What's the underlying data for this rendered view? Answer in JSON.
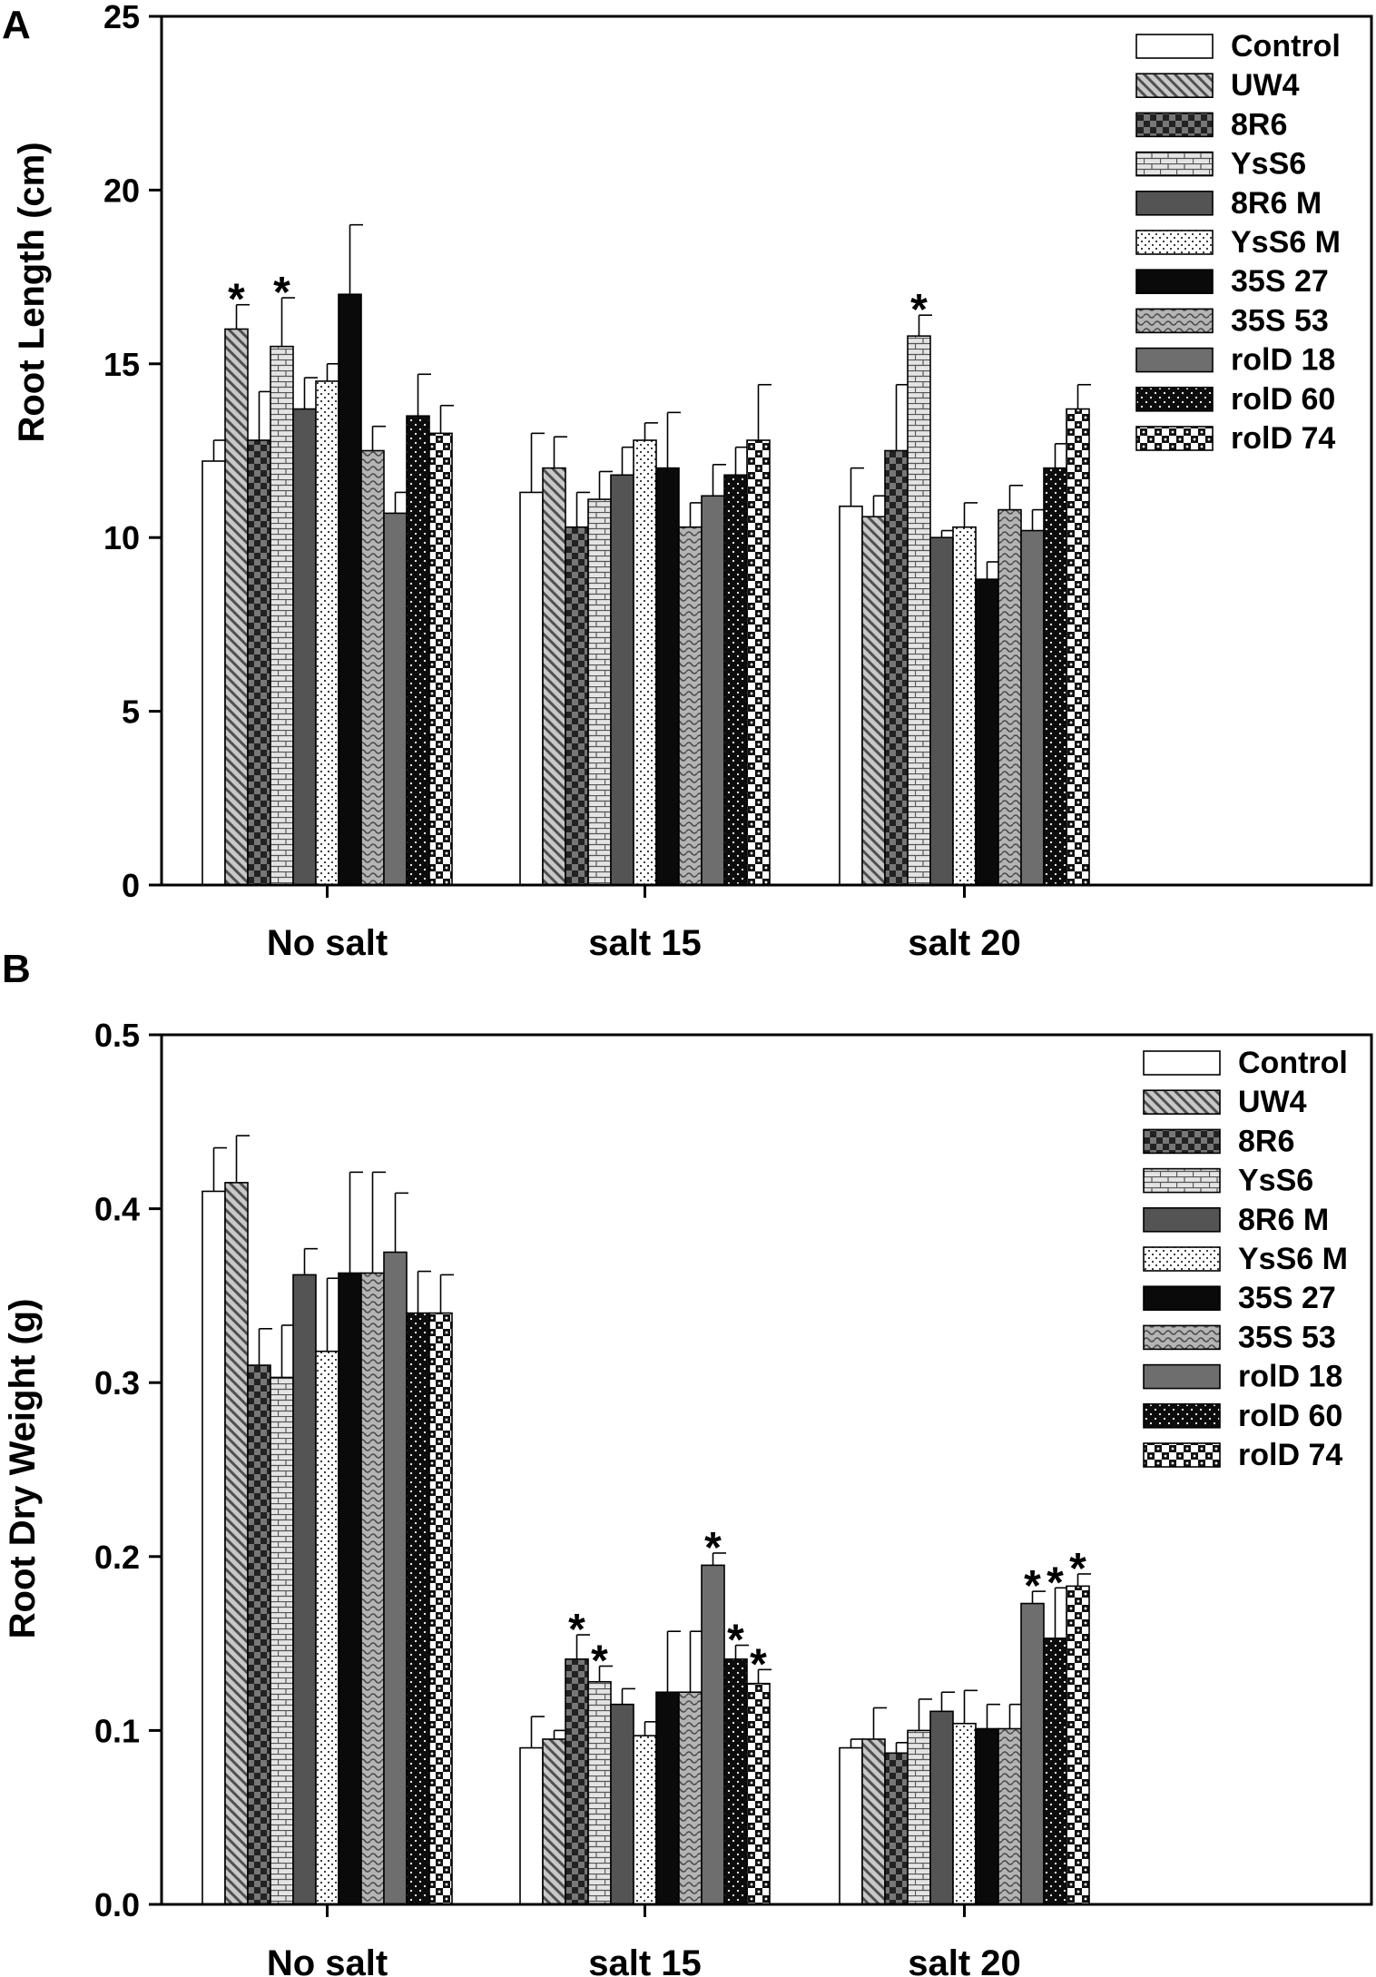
{
  "chart_data": [
    {
      "type": "bar",
      "panel_label": "A",
      "ylabel": "Root Length (cm)",
      "xlabel": "",
      "ylim": [
        0,
        25
      ],
      "yticks": [
        "0",
        "5",
        "10",
        "15",
        "20",
        "25"
      ],
      "ytick_values": [
        0,
        5,
        10,
        15,
        20,
        25
      ],
      "categories": [
        "No salt",
        "salt 15",
        "salt 20"
      ],
      "legend_position": "top-right",
      "series": [
        {
          "name": "Control",
          "pattern": "white",
          "values": [
            12.2,
            11.3,
            10.9
          ],
          "errors": [
            0.6,
            1.7,
            1.1
          ],
          "significant": [
            false,
            false,
            false
          ]
        },
        {
          "name": "UW4",
          "pattern": "diag",
          "values": [
            16.0,
            12.0,
            10.6
          ],
          "errors": [
            0.7,
            0.9,
            0.6
          ],
          "significant": [
            true,
            false,
            false
          ]
        },
        {
          "name": "8R6",
          "pattern": "checker-dark",
          "values": [
            12.8,
            10.3,
            12.5
          ],
          "errors": [
            1.4,
            1.0,
            1.9
          ],
          "significant": [
            false,
            false,
            false
          ]
        },
        {
          "name": "YsS6",
          "pattern": "brick",
          "values": [
            15.5,
            11.1,
            15.8
          ],
          "errors": [
            1.4,
            0.8,
            0.6
          ],
          "significant": [
            true,
            false,
            true
          ]
        },
        {
          "name": "8R6 M",
          "pattern": "dark-gray",
          "values": [
            13.7,
            11.8,
            10.0
          ],
          "errors": [
            0.9,
            0.8,
            0.2
          ],
          "significant": [
            false,
            false,
            false
          ]
        },
        {
          "name": "YsS6 M",
          "pattern": "dots",
          "values": [
            14.5,
            12.8,
            10.3
          ],
          "errors": [
            0.5,
            0.5,
            0.7
          ],
          "significant": [
            false,
            false,
            false
          ]
        },
        {
          "name": "35S 27",
          "pattern": "black",
          "values": [
            17.0,
            12.0,
            8.8
          ],
          "errors": [
            2.0,
            1.6,
            0.5
          ],
          "significant": [
            false,
            false,
            false
          ]
        },
        {
          "name": "35S 53",
          "pattern": "wavy",
          "values": [
            12.5,
            10.3,
            10.8
          ],
          "errors": [
            0.7,
            0.7,
            0.7
          ],
          "significant": [
            false,
            false,
            false
          ]
        },
        {
          "name": "rolD 18",
          "pattern": "mid-gray",
          "values": [
            10.7,
            11.2,
            10.2
          ],
          "errors": [
            0.6,
            0.9,
            0.6
          ],
          "significant": [
            false,
            false,
            false
          ]
        },
        {
          "name": "rolD 60",
          "pattern": "black-dots",
          "values": [
            13.5,
            11.8,
            12.0
          ],
          "errors": [
            1.2,
            0.8,
            0.7
          ],
          "significant": [
            false,
            false,
            false
          ]
        },
        {
          "name": "rolD 74",
          "pattern": "checker-large",
          "values": [
            13.0,
            12.8,
            13.7
          ],
          "errors": [
            0.8,
            1.6,
            0.7
          ],
          "significant": [
            false,
            false,
            false
          ]
        }
      ]
    },
    {
      "type": "bar",
      "panel_label": "B",
      "ylabel": "Root Dry Weight (g)",
      "xlabel": "",
      "ylim": [
        0,
        0.5
      ],
      "yticks": [
        "0.0",
        "0.1",
        "0.2",
        "0.3",
        "0.4",
        "0.5"
      ],
      "ytick_values": [
        0,
        0.1,
        0.2,
        0.3,
        0.4,
        0.5
      ],
      "categories": [
        "No salt",
        "salt 15",
        "salt 20"
      ],
      "legend_position": "top-right",
      "series": [
        {
          "name": "Control",
          "pattern": "white",
          "values": [
            0.41,
            0.09,
            0.09
          ],
          "errors": [
            0.025,
            0.018,
            0.005
          ],
          "significant": [
            false,
            false,
            false
          ]
        },
        {
          "name": "UW4",
          "pattern": "diag",
          "values": [
            0.415,
            0.095,
            0.095
          ],
          "errors": [
            0.027,
            0.005,
            0.018
          ],
          "significant": [
            false,
            false,
            false
          ]
        },
        {
          "name": "8R6",
          "pattern": "checker-dark",
          "values": [
            0.31,
            0.141,
            0.087
          ],
          "errors": [
            0.021,
            0.014,
            0.006
          ],
          "significant": [
            false,
            true,
            false
          ]
        },
        {
          "name": "YsS6",
          "pattern": "brick",
          "values": [
            0.303,
            0.128,
            0.1
          ],
          "errors": [
            0.03,
            0.009,
            0.018
          ],
          "significant": [
            false,
            true,
            false
          ]
        },
        {
          "name": "8R6 M",
          "pattern": "dark-gray",
          "values": [
            0.362,
            0.115,
            0.111
          ],
          "errors": [
            0.015,
            0.009,
            0.011
          ],
          "significant": [
            false,
            false,
            false
          ]
        },
        {
          "name": "YsS6 M",
          "pattern": "dots",
          "values": [
            0.318,
            0.097,
            0.104
          ],
          "errors": [
            0.042,
            0.008,
            0.019
          ],
          "significant": [
            false,
            false,
            false
          ]
        },
        {
          "name": "35S 27",
          "pattern": "black",
          "values": [
            0.363,
            0.122,
            0.101
          ],
          "errors": [
            0.058,
            0.035,
            0.014
          ],
          "significant": [
            false,
            false,
            false
          ]
        },
        {
          "name": "35S 53",
          "pattern": "wavy",
          "values": [
            0.363,
            0.122,
            0.101
          ],
          "errors": [
            0.058,
            0.035,
            0.014
          ],
          "significant": [
            false,
            false,
            false
          ]
        },
        {
          "name": "rolD 18",
          "pattern": "mid-gray",
          "values": [
            0.375,
            0.195,
            0.173
          ],
          "errors": [
            0.034,
            0.007,
            0.007
          ],
          "significant": [
            false,
            true,
            true
          ]
        },
        {
          "name": "rolD 60",
          "pattern": "black-dots",
          "values": [
            0.34,
            0.141,
            0.153
          ],
          "errors": [
            0.024,
            0.008,
            0.029
          ],
          "significant": [
            false,
            true,
            true
          ]
        },
        {
          "name": "rolD 74",
          "pattern": "checker-large",
          "values": [
            0.34,
            0.127,
            0.183
          ],
          "errors": [
            0.022,
            0.008,
            0.007
          ],
          "significant": [
            false,
            true,
            true
          ]
        }
      ]
    }
  ]
}
